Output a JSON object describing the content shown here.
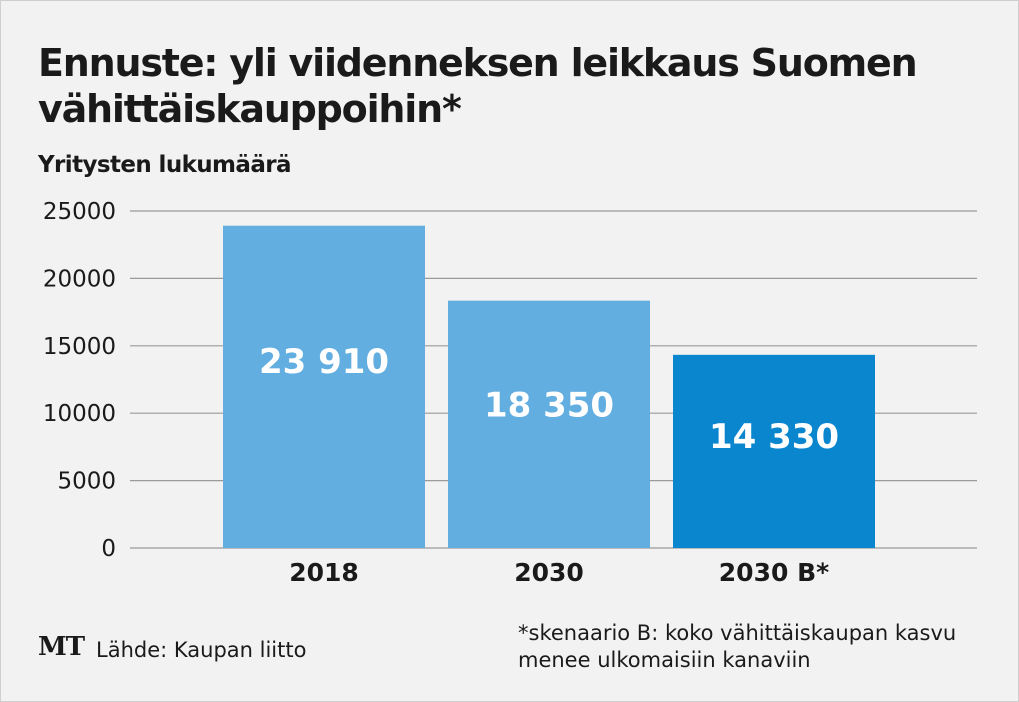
{
  "title": "Ennuste: yli viidenneksen leikkaus Suomen vähittäiskauppoihin*",
  "footer": {
    "logo": "MT",
    "source": "Lähde: Kaupan liitto",
    "footnote_line1": "*skenaario B: koko vähittäiskaupan kasvu",
    "footnote_line2": "menee ulkomaisiin kanaviin"
  },
  "colors": {
    "bar_light": "#62aee0",
    "bar_dark": "#0a86cf",
    "grid": "#9a9a9a",
    "text": "#1a1a1a",
    "bar_label": "#ffffff"
  },
  "chart_data": {
    "type": "bar",
    "title": "Ennuste: yli viidenneksen leikkaus Suomen vähittäiskauppoihin*",
    "ylabel": "Yritysten lukumäärä",
    "xlabel": "",
    "categories": [
      "2018",
      "2030",
      "2030 B*"
    ],
    "values": [
      23910,
      18350,
      14330
    ],
    "value_labels": [
      "23 910",
      "18 350",
      "14 330"
    ],
    "bar_colors": [
      "#62aee0",
      "#62aee0",
      "#0a86cf"
    ],
    "ylim": [
      0,
      25000
    ],
    "yticks": [
      0,
      5000,
      10000,
      15000,
      20000,
      25000
    ],
    "ytick_labels": [
      "0",
      "5000",
      "10000",
      "15000",
      "20000",
      "25000"
    ],
    "grid": true,
    "legend": "none"
  }
}
